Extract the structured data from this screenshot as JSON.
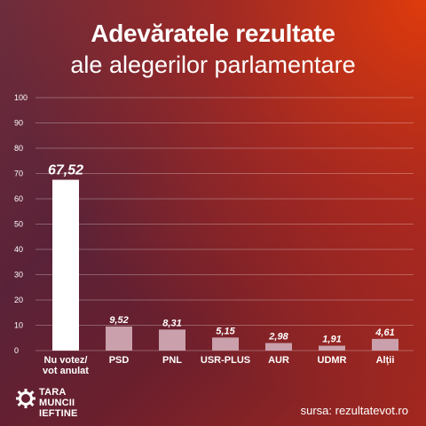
{
  "title": {
    "line1": "Adevăratele rezultate",
    "line2": "ale alegerilor parlamentare"
  },
  "chart_data": {
    "type": "bar",
    "categories": [
      "Nu votez/\nvot anulat",
      "PSD",
      "PNL",
      "USR-PLUS",
      "AUR",
      "UDMR",
      "Alții"
    ],
    "values": [
      67.52,
      9.52,
      8.31,
      5.15,
      2.98,
      1.91,
      4.61
    ],
    "value_labels": [
      "67,52",
      "9,52",
      "8,31",
      "5,15",
      "2,98",
      "1,91",
      "4,61"
    ],
    "ylim": [
      0,
      100
    ],
    "yticks": [
      0,
      10,
      20,
      30,
      40,
      50,
      60,
      70,
      80,
      90,
      100
    ],
    "grid": true,
    "highlight_color": "#ffffff",
    "bar_color": "#c9a0ab"
  },
  "logo": {
    "lines": [
      "TARA",
      "MUNCII",
      "IEFTINE"
    ]
  },
  "source": "sursa: rezultatevot.ro"
}
